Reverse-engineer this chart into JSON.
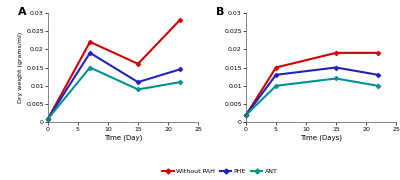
{
  "panel_A": {
    "title": "A",
    "xlabel": "Time (Day)",
    "ylabel": "Dry weight (grams/ml)",
    "xlim": [
      0,
      25
    ],
    "ylim": [
      0,
      0.03
    ],
    "yticks": [
      0,
      0.005,
      0.01,
      0.015,
      0.02,
      0.025,
      0.03
    ],
    "xticks": [
      0,
      5,
      10,
      15,
      20,
      25
    ],
    "series": [
      {
        "label": "Without PAH",
        "color": "#cc0000",
        "x": [
          0,
          7,
          15,
          22
        ],
        "y": [
          0.001,
          0.022,
          0.016,
          0.028
        ]
      },
      {
        "label": "PHE",
        "color": "#2222bb",
        "x": [
          0,
          7,
          15,
          22
        ],
        "y": [
          0.001,
          0.019,
          0.011,
          0.0145
        ]
      },
      {
        "label": "ANT",
        "color": "#009090",
        "x": [
          0,
          7,
          15,
          22
        ],
        "y": [
          0.001,
          0.015,
          0.009,
          0.011
        ]
      }
    ]
  },
  "panel_B": {
    "title": "B",
    "xlabel": "Time (Days)",
    "ylabel": "",
    "xlim": [
      0,
      25
    ],
    "ylim": [
      0,
      0.03
    ],
    "yticks": [
      0,
      0.005,
      0.01,
      0.015,
      0.02,
      0.025,
      0.03
    ],
    "xticks": [
      0,
      5,
      10,
      15,
      20,
      25
    ],
    "series": [
      {
        "label": "Without PAH",
        "color": "#cc0000",
        "x": [
          0,
          5,
          15,
          22
        ],
        "y": [
          0.002,
          0.015,
          0.019,
          0.019
        ]
      },
      {
        "label": "PHE",
        "color": "#2222bb",
        "x": [
          0,
          5,
          15,
          22
        ],
        "y": [
          0.002,
          0.013,
          0.015,
          0.013
        ]
      },
      {
        "label": "ANT",
        "color": "#009090",
        "x": [
          0,
          5,
          15,
          22
        ],
        "y": [
          0.002,
          0.01,
          0.012,
          0.01
        ]
      }
    ]
  },
  "legend": [
    {
      "label": "Without PAH",
      "color": "#cc0000"
    },
    {
      "label": "PHE",
      "color": "#2222bb"
    },
    {
      "label": "ANT",
      "color": "#009090"
    }
  ],
  "marker": "D",
  "markersize": 2.5,
  "linewidth": 1.5,
  "background_color": "#ffffff"
}
